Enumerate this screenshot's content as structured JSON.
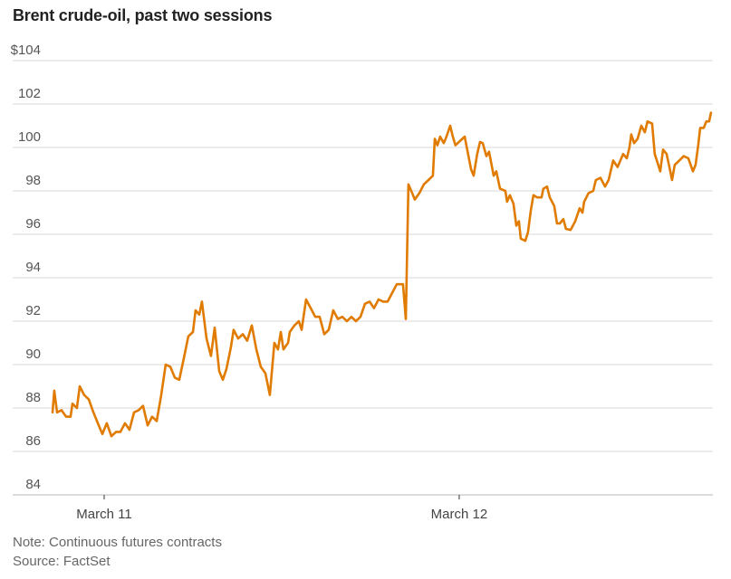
{
  "chart_data": {
    "type": "line",
    "title": "Brent crude-oil, past two sessions",
    "xlabel": "",
    "ylabel": "",
    "x_units": "hours since March 11 00:00",
    "xlim": [
      -3.55,
      41.15
    ],
    "ylim": [
      84,
      104
    ],
    "grid": true,
    "y_ticks": [
      {
        "value": 104,
        "label": "$104"
      },
      {
        "value": 102,
        "label": "102"
      },
      {
        "value": 100,
        "label": "100"
      },
      {
        "value": 98,
        "label": "98"
      },
      {
        "value": 96,
        "label": "96"
      },
      {
        "value": 94,
        "label": "94"
      },
      {
        "value": 92,
        "label": "92"
      },
      {
        "value": 90,
        "label": "90"
      },
      {
        "value": 88,
        "label": "88"
      },
      {
        "value": 86,
        "label": "86"
      },
      {
        "value": 84,
        "label": "84"
      }
    ],
    "x_ticks": [
      {
        "value": 0,
        "label": "March 11"
      },
      {
        "value": 24,
        "label": "March 12"
      }
    ],
    "series": [
      {
        "name": "Brent crude",
        "color": "#e07b00",
        "x": [
          -3.49,
          -3.37,
          -3.18,
          -2.88,
          -2.57,
          -2.27,
          -2.14,
          -1.84,
          -1.65,
          -1.35,
          -1.04,
          -0.73,
          -0.43,
          -0.12,
          0.18,
          0.49,
          0.8,
          1.1,
          1.41,
          1.71,
          2.02,
          2.33,
          2.63,
          2.94,
          3.24,
          3.55,
          3.86,
          4.16,
          4.47,
          4.78,
          5.08,
          5.39,
          5.69,
          6.0,
          6.18,
          6.43,
          6.61,
          6.92,
          7.22,
          7.47,
          7.78,
          8.02,
          8.27,
          8.57,
          8.75,
          9.06,
          9.37,
          9.67,
          9.98,
          10.29,
          10.59,
          10.9,
          11.2,
          11.51,
          11.75,
          11.94,
          12.12,
          12.43,
          12.55,
          12.86,
          13.16,
          13.35,
          13.65,
          13.96,
          14.27,
          14.57,
          14.88,
          15.18,
          15.49,
          15.8,
          16.1,
          16.41,
          16.71,
          17.02,
          17.33,
          17.63,
          17.94,
          18.24,
          18.55,
          18.86,
          19.16,
          19.78,
          20.2,
          20.39,
          20.57,
          20.82,
          21.0,
          21.31,
          21.61,
          21.92,
          22.22,
          22.35,
          22.53,
          22.71,
          22.96,
          23.14,
          23.39,
          23.57,
          23.75,
          24.06,
          24.37,
          24.8,
          24.98,
          25.22,
          25.41,
          25.59,
          25.84,
          26.02,
          26.33,
          26.51,
          26.76,
          27.12,
          27.24,
          27.43,
          27.67,
          27.86,
          28.04,
          28.16,
          28.47,
          28.65,
          28.84,
          29.02,
          29.27,
          29.57,
          29.69,
          29.94,
          30.12,
          30.43,
          30.61,
          30.8,
          31.04,
          31.22,
          31.53,
          31.84,
          32.14,
          32.33,
          32.45,
          32.75,
          33.06,
          33.24,
          33.55,
          33.86,
          34.1,
          34.41,
          34.71,
          35.08,
          35.33,
          35.51,
          35.63,
          35.82,
          36.06,
          36.31,
          36.55,
          36.73,
          37.04,
          37.22,
          37.41,
          37.59,
          37.78,
          38.02,
          38.27,
          38.39,
          38.57,
          38.88,
          39.18,
          39.49,
          39.8,
          39.98,
          40.16,
          40.29,
          40.53,
          40.71,
          40.9,
          41.02
        ],
        "y": [
          87.8,
          88.8,
          87.8,
          87.9,
          87.6,
          87.6,
          88.2,
          88.0,
          89.0,
          88.6,
          88.4,
          87.8,
          87.3,
          86.8,
          87.3,
          86.7,
          86.9,
          86.9,
          87.3,
          87.0,
          87.8,
          87.9,
          88.1,
          87.2,
          87.6,
          87.4,
          88.6,
          90.0,
          89.9,
          89.4,
          89.3,
          90.3,
          91.3,
          91.5,
          92.5,
          92.3,
          92.9,
          91.2,
          90.4,
          91.7,
          89.7,
          89.3,
          89.8,
          90.8,
          91.6,
          91.2,
          91.4,
          91.1,
          91.8,
          90.7,
          89.9,
          89.6,
          88.6,
          91.0,
          90.7,
          91.5,
          90.7,
          91.0,
          91.5,
          91.8,
          92.0,
          91.6,
          93.0,
          92.6,
          92.2,
          92.2,
          91.4,
          91.6,
          92.5,
          92.1,
          92.2,
          92.0,
          92.2,
          92.0,
          92.2,
          92.8,
          92.9,
          92.6,
          93.0,
          92.9,
          92.9,
          93.7,
          93.7,
          92.1,
          98.3,
          97.9,
          97.6,
          97.9,
          98.3,
          98.5,
          98.7,
          100.4,
          100.1,
          100.5,
          100.2,
          100.5,
          101.0,
          100.5,
          100.1,
          100.3,
          100.5,
          99.0,
          98.7,
          99.7,
          100.25,
          100.2,
          99.6,
          99.8,
          98.7,
          98.9,
          98.1,
          98.0,
          97.5,
          97.8,
          97.4,
          96.4,
          96.6,
          95.8,
          95.7,
          96.1,
          97.1,
          97.8,
          97.7,
          97.7,
          98.1,
          98.2,
          97.7,
          97.3,
          96.5,
          96.5,
          96.7,
          96.25,
          96.2,
          96.6,
          97.2,
          97.0,
          97.5,
          97.9,
          98.0,
          98.5,
          98.6,
          98.2,
          98.5,
          99.4,
          99.1,
          99.7,
          99.5,
          100.0,
          100.6,
          100.2,
          100.4,
          101.0,
          100.7,
          101.2,
          101.1,
          99.7,
          99.3,
          98.9,
          99.9,
          99.7,
          98.9,
          98.5,
          99.2,
          99.4,
          99.6,
          99.5,
          98.9,
          99.2,
          100.1,
          100.9,
          100.9,
          101.2,
          101.2,
          101.6
        ]
      }
    ]
  },
  "footer": {
    "note": "Note: Continuous futures contracts",
    "source": "Source: FactSet"
  }
}
